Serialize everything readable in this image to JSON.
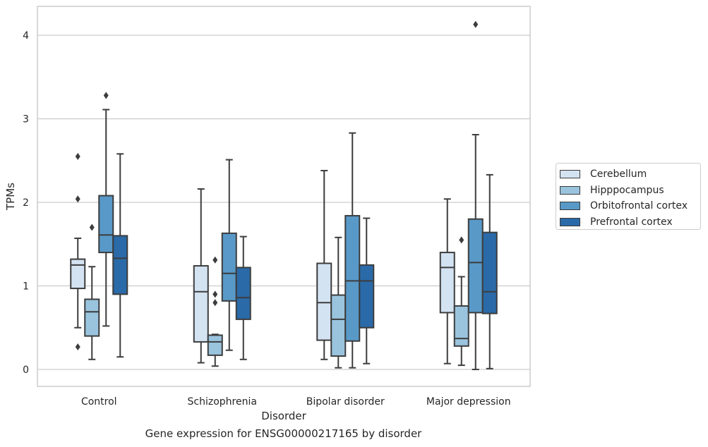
{
  "chart_data": {
    "type": "box",
    "title": "",
    "caption": "Gene expression for ENSG00000217165 by disorder",
    "xlabel": "Disorder",
    "ylabel": "TPMs",
    "ylim": [
      -0.2,
      4.35
    ],
    "yticks": [
      "0",
      "1",
      "2",
      "3",
      "4"
    ],
    "grid": "horizontal",
    "legend_position": "right",
    "categories": [
      "Control",
      "Schizophrenia",
      "Bipolar disorder",
      "Major depression"
    ],
    "series": [
      {
        "name": "Cerebellum",
        "color": "#d4e3f2",
        "boxes": [
          {
            "whislo": 0.5,
            "q1": 0.97,
            "med": 1.25,
            "q3": 1.32,
            "whishi": 1.57,
            "fliers": [
              2.55,
              2.04,
              0.27
            ]
          },
          {
            "whislo": 0.08,
            "q1": 0.33,
            "med": 0.93,
            "q3": 1.24,
            "whishi": 2.16,
            "fliers": []
          },
          {
            "whislo": 0.12,
            "q1": 0.35,
            "med": 0.8,
            "q3": 1.27,
            "whishi": 2.38,
            "fliers": []
          },
          {
            "whislo": 0.07,
            "q1": 0.68,
            "med": 1.22,
            "q3": 1.4,
            "whishi": 2.04,
            "fliers": []
          }
        ]
      },
      {
        "name": "Hipppocampus",
        "color": "#9ac4de",
        "boxes": [
          {
            "whislo": 0.12,
            "q1": 0.4,
            "med": 0.69,
            "q3": 0.84,
            "whishi": 1.23,
            "fliers": [
              1.7
            ]
          },
          {
            "whislo": 0.04,
            "q1": 0.17,
            "med": 0.33,
            "q3": 0.41,
            "whishi": 0.42,
            "fliers": [
              1.31,
              0.9,
              0.8
            ]
          },
          {
            "whislo": 0.02,
            "q1": 0.16,
            "med": 0.6,
            "q3": 0.89,
            "whishi": 1.58,
            "fliers": []
          },
          {
            "whislo": 0.05,
            "q1": 0.28,
            "med": 0.37,
            "q3": 0.76,
            "whishi": 1.11,
            "fliers": [
              1.55
            ]
          }
        ]
      },
      {
        "name": "Orbitofrontal cortex",
        "color": "#5899c8",
        "boxes": [
          {
            "whislo": 0.52,
            "q1": 1.4,
            "med": 1.61,
            "q3": 2.08,
            "whishi": 3.11,
            "fliers": [
              3.28
            ]
          },
          {
            "whislo": 0.23,
            "q1": 0.82,
            "med": 1.15,
            "q3": 1.63,
            "whishi": 2.51,
            "fliers": []
          },
          {
            "whislo": 0.02,
            "q1": 0.34,
            "med": 1.06,
            "q3": 1.84,
            "whishi": 2.83,
            "fliers": []
          },
          {
            "whislo": 0.0,
            "q1": 0.68,
            "med": 1.28,
            "q3": 1.8,
            "whishi": 2.81,
            "fliers": [
              4.13
            ]
          }
        ]
      },
      {
        "name": "Prefrontal cortex",
        "color": "#2a6aa8",
        "boxes": [
          {
            "whislo": 0.15,
            "q1": 0.9,
            "med": 1.33,
            "q3": 1.6,
            "whishi": 2.58,
            "fliers": []
          },
          {
            "whislo": 0.12,
            "q1": 0.6,
            "med": 0.86,
            "q3": 1.22,
            "whishi": 1.59,
            "fliers": []
          },
          {
            "whislo": 0.07,
            "q1": 0.5,
            "med": 1.06,
            "q3": 1.25,
            "whishi": 1.81,
            "fliers": []
          },
          {
            "whislo": 0.01,
            "q1": 0.67,
            "med": 0.93,
            "q3": 1.64,
            "whishi": 2.33,
            "fliers": []
          }
        ]
      }
    ]
  }
}
